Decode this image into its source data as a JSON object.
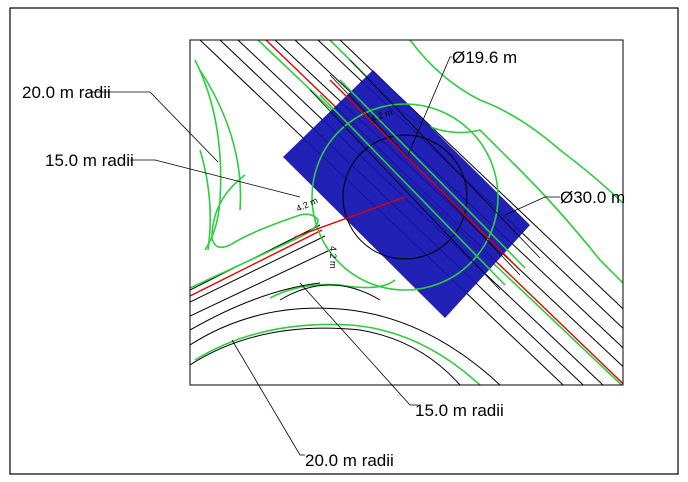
{
  "annotations": {
    "top_left_outer": "20.0 m radii",
    "top_left_inner": "15.0 m radii",
    "inner_circle": "Ø19.6 m",
    "outer_circle": "Ø30.0 m",
    "bottom_inner": "15.0 m radii",
    "bottom_outer": "20.0 m radii",
    "lane_width_top": "4.2 m",
    "lane_width_left": "4.2 m",
    "lane_width_right": "4.2 m"
  }
}
